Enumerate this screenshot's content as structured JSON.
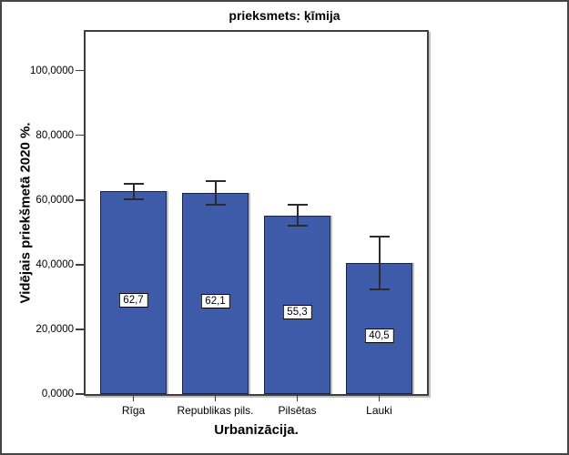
{
  "figure": {
    "background": "#ffffff",
    "outer_border_color": "#454545"
  },
  "chart_data": {
    "type": "bar",
    "title": "prieksmets: ķīmija",
    "xlabel": "Urbanizācija.",
    "ylabel": "Vidējais priekšmetā 2020 %.",
    "categories": [
      "Rīga",
      "Republikas pils.",
      "Pilsētas",
      "Lauki"
    ],
    "values": [
      62.7,
      62.1,
      55.3,
      40.5
    ],
    "value_labels": [
      "62,7",
      "62,1",
      "55,3",
      "40,5"
    ],
    "error_low": [
      60.3,
      58.4,
      52.1,
      32.4
    ],
    "error_high": [
      65.1,
      65.8,
      58.5,
      48.6
    ],
    "ytick_values": [
      0,
      20,
      40,
      60,
      80,
      100
    ],
    "ytick_labels": [
      "0,0000",
      "20,0000",
      "40,0000",
      "60,0000",
      "80,0000",
      "100,0000"
    ],
    "ylim": [
      0,
      112
    ],
    "grid": false,
    "legend": false,
    "bar_color": "#3e5ba9",
    "bar_border_color": "#1a234a",
    "error_bar_color": "#2b2b2b",
    "frame_color": "#3f3f3f"
  }
}
